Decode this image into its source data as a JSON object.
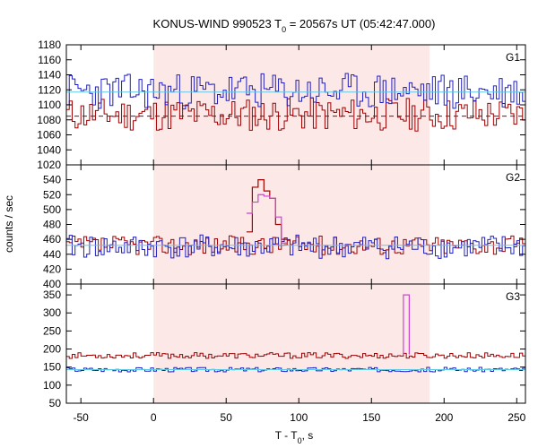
{
  "chart_data": {
    "type": "line",
    "title": "KONUS-WIND 990523 T",
    "title_sub": "0",
    "title_rest": " = 20567s UT (05:42:47.000)",
    "xlabel": "T - T",
    "xlabel_sub": "0",
    "xlabel_rest": ", s",
    "ylabel": "counts / sec",
    "xlim": [
      -60,
      256
    ],
    "xticks": [
      -50,
      0,
      50,
      100,
      150,
      200,
      250
    ],
    "shaded_interval": [
      0,
      190
    ],
    "colors": {
      "shade": "#fde8e8",
      "red": "#a00000",
      "blue": "#2020c0",
      "background": "#5ec8e8",
      "peak": "#d040d0"
    },
    "panels": [
      {
        "label": "G1",
        "ylim": [
          1020,
          1180
        ],
        "yticks": [
          1020,
          1040,
          1060,
          1080,
          1100,
          1120,
          1140,
          1160,
          1180
        ],
        "series": [
          {
            "color": "red",
            "mean": 1087,
            "spread": 14,
            "seed": 11
          },
          {
            "color": "blue",
            "mean": 1118,
            "spread": 15,
            "seed": 23
          }
        ],
        "background_levels": [
          {
            "value": 1117,
            "color": "background",
            "dash": false
          },
          {
            "value": 1085,
            "color": "red",
            "dash": true
          }
        ]
      },
      {
        "label": "G2",
        "ylim": [
          400,
          560
        ],
        "yticks": [
          400,
          420,
          440,
          460,
          480,
          500,
          520,
          540
        ],
        "series": [
          {
            "color": "red",
            "mean": 452,
            "spread": 8,
            "seed": 37
          },
          {
            "color": "blue",
            "mean": 450,
            "spread": 10,
            "seed": 41
          }
        ],
        "background_levels": [
          {
            "value": 452,
            "color": "background",
            "dash": false
          }
        ],
        "peaks": [
          {
            "color": "red",
            "points": [
              [
                64,
                470
              ],
              [
                68,
                530
              ],
              [
                72,
                540
              ],
              [
                76,
                525
              ],
              [
                80,
                515
              ],
              [
                84,
                480
              ],
              [
                88,
                460
              ]
            ]
          },
          {
            "color": "peak",
            "points": [
              [
                64,
                495
              ],
              [
                68,
                510
              ],
              [
                72,
                520
              ],
              [
                76,
                518
              ],
              [
                80,
                515
              ],
              [
                84,
                490
              ],
              [
                88,
                455
              ]
            ]
          }
        ]
      },
      {
        "label": "G3",
        "ylim": [
          50,
          380
        ],
        "yticks": [
          50,
          100,
          150,
          200,
          250,
          300,
          350
        ],
        "series": [
          {
            "color": "red",
            "mean": 182,
            "spread": 5,
            "seed": 53
          },
          {
            "color": "blue",
            "mean": 143,
            "spread": 4,
            "seed": 67
          }
        ],
        "background_levels": [
          {
            "value": 143,
            "color": "background",
            "dash": false
          }
        ],
        "spikes": [
          {
            "color": "peak",
            "x": 172,
            "width": 4,
            "value": 350,
            "base": 185
          }
        ]
      }
    ]
  }
}
